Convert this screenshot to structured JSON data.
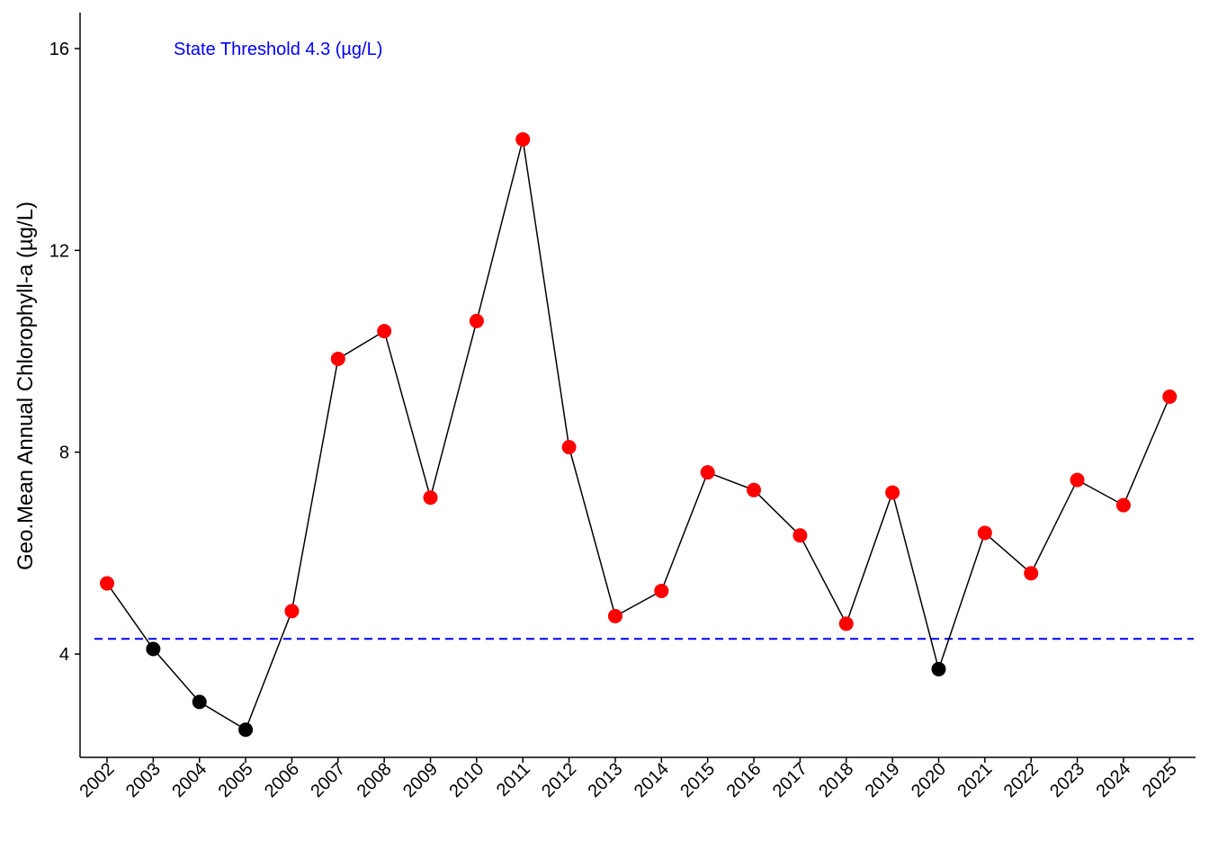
{
  "chart_data": {
    "type": "line",
    "ylabel": "Geo.Mean Annual Chlorophyll-a (µg/L)",
    "xlabel": "",
    "x": [
      "2002",
      "2003",
      "2004",
      "2005",
      "2006",
      "2007",
      "2008",
      "2009",
      "2010",
      "2011",
      "2012",
      "2013",
      "2014",
      "2015",
      "2016",
      "2017",
      "2018",
      "2019",
      "2020",
      "2021",
      "2022",
      "2023",
      "2024",
      "2025"
    ],
    "values": [
      5.4,
      4.1,
      3.05,
      2.5,
      4.85,
      9.85,
      10.4,
      7.1,
      10.6,
      14.2,
      8.1,
      4.75,
      5.25,
      7.6,
      7.25,
      6.35,
      4.6,
      7.2,
      3.7,
      6.4,
      5.6,
      7.45,
      6.95,
      9.1
    ],
    "ylim": [
      1.95,
      16.7
    ],
    "yticks": [
      4,
      8,
      12,
      16
    ],
    "threshold": {
      "value": 4.3,
      "label": "State Threshold 4.3 (µg/L)",
      "color": "#0000FF",
      "style": "dashed"
    },
    "point_colors": {
      "above_threshold": "#FF0000",
      "below_threshold": "#000000"
    },
    "line_color": "#000000",
    "grid": false,
    "x_tick_rotation_deg": 45
  }
}
